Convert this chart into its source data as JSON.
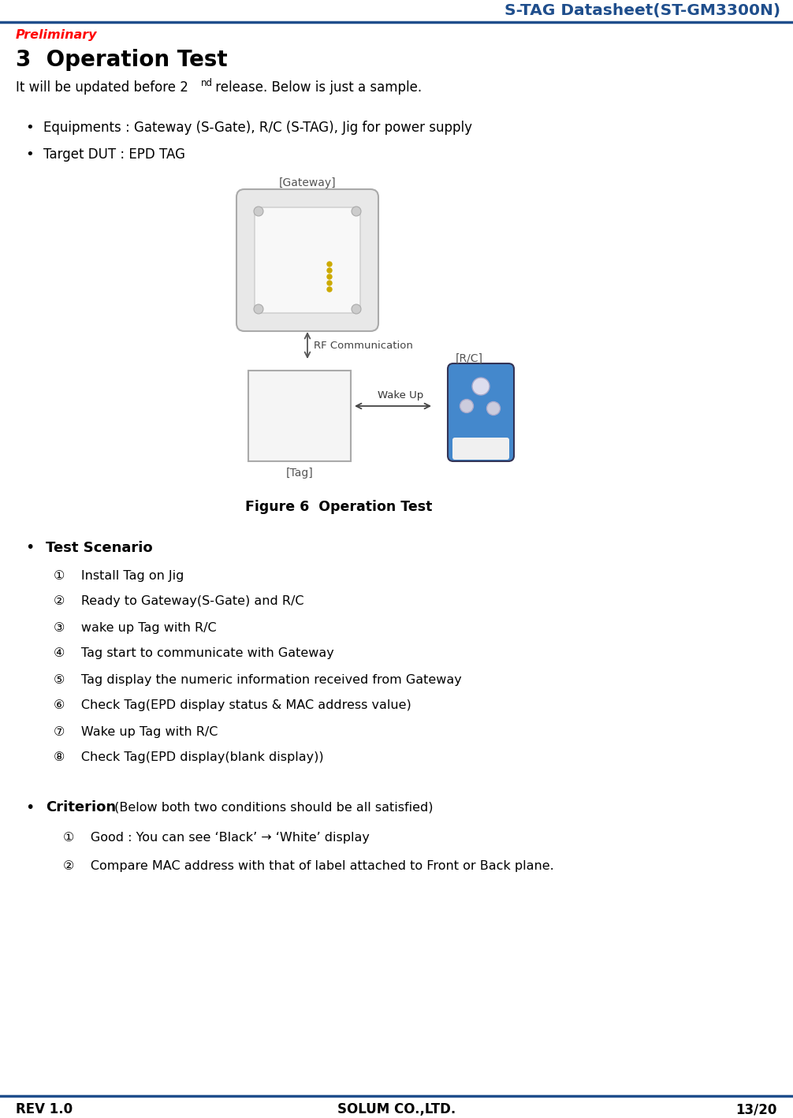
{
  "header_title": "S-TAG Datasheet(ST-GM3300N)",
  "header_title_color": "#1F4E8C",
  "preliminary_text": "Preliminary",
  "preliminary_color": "#FF0000",
  "section_title": "3  Operation Test",
  "section_title_color": "#000000",
  "intro_text": "It will be updated before 2",
  "intro_superscript": "nd",
  "intro_text2": " release. Below is just a sample.",
  "bullet1": "Equipments : Gateway (S-Gate), R/C (S-TAG), Jig for power supply",
  "bullet2": "Target DUT : EPD TAG",
  "figure_caption": "Figure 6  Operation Test",
  "test_scenario_label": "Test Scenario",
  "scenario_items": [
    "①    Install Tag on Jig",
    "②    Ready to Gateway(S-Gate) and R/C",
    "③    wake up Tag with R/C",
    "④    Tag start to communicate with Gateway",
    "⑤    Tag display the numeric information received from Gateway",
    "⑥    Check Tag(EPD display status & MAC address value)",
    "⑦    Wake up Tag with R/C",
    "⑧    Check Tag(EPD display(blank display))"
  ],
  "criterion_label": "Criterion",
  "criterion_suffix": " (Below both two conditions should be all satisfied)",
  "criterion_items": [
    "①    Good : You can see ‘Black’ → ‘White’ display",
    "②    Compare MAC address with that of label attached to Front or Back plane."
  ],
  "footer_left": "REV 1.0",
  "footer_center": "SOLUM CO.,LTD.",
  "footer_right": "13/20",
  "line_color": "#1F4E8C",
  "background_color": "#FFFFFF",
  "gw_label": "[Gateway]",
  "tag_label": "[Tag]",
  "rc_label": "[R/C]",
  "rf_label": "RF Communication",
  "wakeup_label": "Wake Up"
}
